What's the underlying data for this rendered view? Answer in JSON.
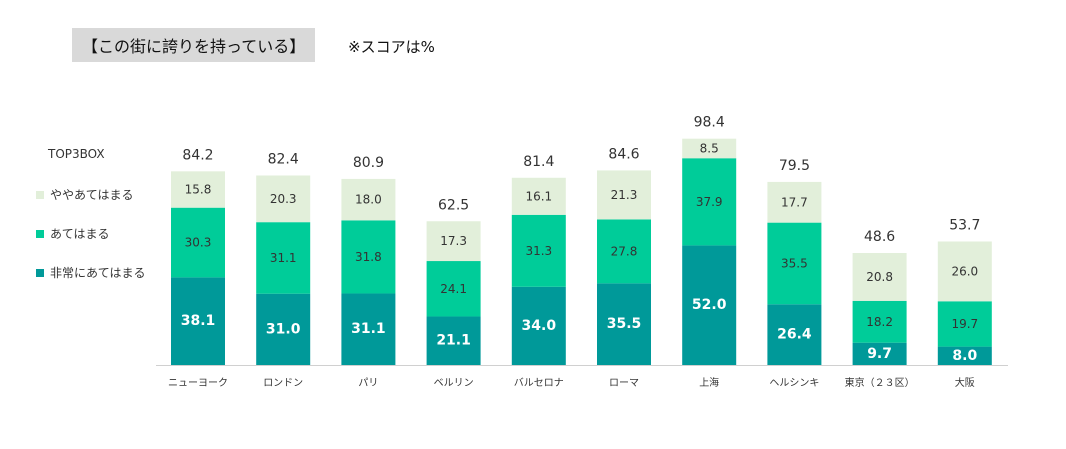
{
  "header": {
    "title": "【この街に誇りを持っている】",
    "note": "※スコアは%"
  },
  "chart_data": {
    "type": "bar",
    "stacked": true,
    "legend_title": "TOP3BOX",
    "categories": [
      "ニューヨーク",
      "ロンドン",
      "パリ",
      "ベルリン",
      "バルセロナ",
      "ローマ",
      "上海",
      "ヘルシンキ",
      "東京（２３区）",
      "大阪"
    ],
    "totals": [
      84.2,
      82.4,
      80.9,
      62.5,
      81.4,
      84.6,
      98.4,
      79.5,
      48.6,
      53.7
    ],
    "series": [
      {
        "name": "非常にあてはまる",
        "color": "#009999",
        "values": [
          38.1,
          31.0,
          31.1,
          21.1,
          34.0,
          35.5,
          52.0,
          26.4,
          9.7,
          8.0
        ]
      },
      {
        "name": "あてはまる",
        "color": "#00cc99",
        "values": [
          30.3,
          31.1,
          31.8,
          24.1,
          31.3,
          27.8,
          37.9,
          35.5,
          18.2,
          19.7
        ]
      },
      {
        "name": "ややあてはまる",
        "color": "#e2efda",
        "values": [
          15.8,
          20.3,
          18.0,
          17.3,
          16.1,
          21.3,
          8.5,
          17.7,
          20.8,
          26.0
        ]
      }
    ],
    "ylim": [
      0,
      100
    ]
  }
}
